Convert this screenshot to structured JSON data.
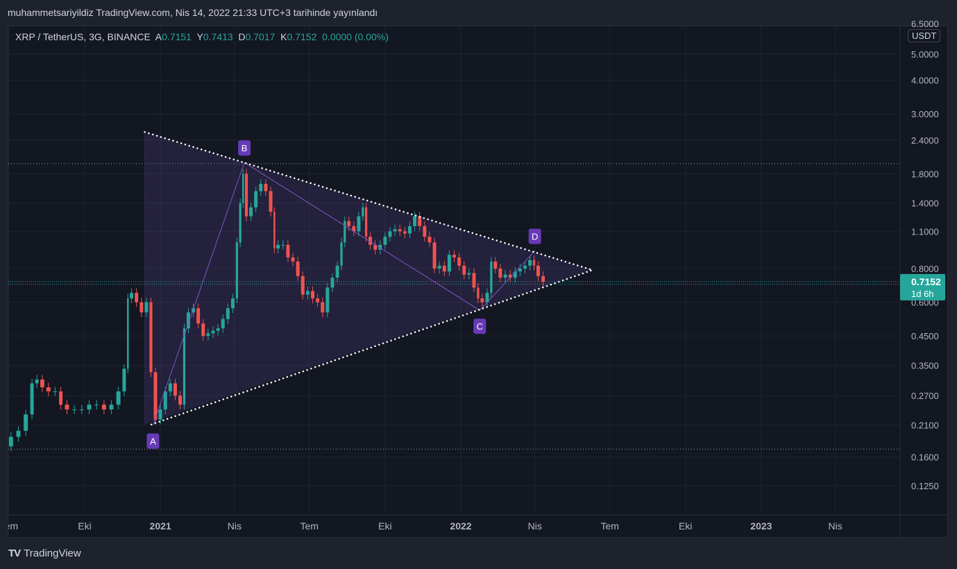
{
  "header": {
    "title": "muhammetsariyildiz TradingView.com, Nis 14, 2022 21:33 UTC+3 tarihinde yayınlandı"
  },
  "legend": {
    "symbol": "XRP / TetherUS, 3G, BINANCE",
    "open_label": "A",
    "open": "0.7151",
    "high_label": "Y",
    "high": "0.7413",
    "low_label": "D",
    "low": "0.7017",
    "close_label": "K",
    "close": "0.7152",
    "change": "0.0000 (0.00%)"
  },
  "price_axis": {
    "unit": "USDT",
    "last_price": "0.7152",
    "countdown": "1d 6h"
  },
  "footer": {
    "brand": "TradingView",
    "brand_mark": "TV"
  },
  "colors": {
    "up": "#26a69a",
    "down": "#ef5350",
    "pattern": "#7e57c2",
    "label_bg": "#673ab7",
    "background": "#131722"
  },
  "chart_data": {
    "type": "candlestick",
    "title": "XRP / TetherUS, 3G, BINANCE",
    "yscale": "log",
    "ylim": [
      0.1,
      6.6
    ],
    "xlim": [
      "2020-06-28",
      "2023-06-01"
    ],
    "y_ticks": [
      "6.5000",
      "5.0000",
      "4.0000",
      "3.0000",
      "2.4000",
      "1.8000",
      "1.4000",
      "1.1000",
      "0.8000",
      "0.6000",
      "0.4500",
      "0.3500",
      "0.2700",
      "0.2100",
      "0.1600",
      "0.1250"
    ],
    "x_ticks": [
      {
        "date": "2020-07-01",
        "label": "Tem",
        "bold": false
      },
      {
        "date": "2020-10-01",
        "label": "Eki",
        "bold": false
      },
      {
        "date": "2021-01-01",
        "label": "2021",
        "bold": true
      },
      {
        "date": "2021-04-01",
        "label": "Nis",
        "bold": false
      },
      {
        "date": "2021-07-01",
        "label": "Tem",
        "bold": false
      },
      {
        "date": "2021-10-01",
        "label": "Eki",
        "bold": false
      },
      {
        "date": "2022-01-01",
        "label": "2022",
        "bold": true
      },
      {
        "date": "2022-04-01",
        "label": "Nis",
        "bold": false
      },
      {
        "date": "2022-07-01",
        "label": "Tem",
        "bold": false
      },
      {
        "date": "2022-10-01",
        "label": "Eki",
        "bold": false
      },
      {
        "date": "2023-01-01",
        "label": "2023",
        "bold": true
      },
      {
        "date": "2023-04-01",
        "label": "Nis",
        "bold": false
      }
    ],
    "series_close": [
      [
        "2020-06-29",
        0.175
      ],
      [
        "2020-07-08",
        0.19
      ],
      [
        "2020-07-17",
        0.2
      ],
      [
        "2020-07-26",
        0.23
      ],
      [
        "2020-08-01",
        0.3
      ],
      [
        "2020-08-07",
        0.31
      ],
      [
        "2020-08-14",
        0.29
      ],
      [
        "2020-08-22",
        0.28
      ],
      [
        "2020-08-30",
        0.28
      ],
      [
        "2020-09-05",
        0.25
      ],
      [
        "2020-09-14",
        0.24
      ],
      [
        "2020-09-23",
        0.24
      ],
      [
        "2020-10-02",
        0.24
      ],
      [
        "2020-10-11",
        0.25
      ],
      [
        "2020-10-20",
        0.25
      ],
      [
        "2020-10-29",
        0.24
      ],
      [
        "2020-11-07",
        0.25
      ],
      [
        "2020-11-15",
        0.28
      ],
      [
        "2020-11-21",
        0.34
      ],
      [
        "2020-11-24",
        0.62
      ],
      [
        "2020-11-30",
        0.65
      ],
      [
        "2020-12-06",
        0.6
      ],
      [
        "2020-12-12",
        0.55
      ],
      [
        "2020-12-18",
        0.6
      ],
      [
        "2020-12-23",
        0.33
      ],
      [
        "2020-12-29",
        0.22
      ],
      [
        "2021-01-04",
        0.24
      ],
      [
        "2021-01-10",
        0.28
      ],
      [
        "2021-01-16",
        0.3
      ],
      [
        "2021-01-22",
        0.27
      ],
      [
        "2021-01-28",
        0.25
      ],
      [
        "2021-02-01",
        0.48
      ],
      [
        "2021-02-07",
        0.55
      ],
      [
        "2021-02-13",
        0.57
      ],
      [
        "2021-02-19",
        0.5
      ],
      [
        "2021-02-25",
        0.45
      ],
      [
        "2021-03-03",
        0.46
      ],
      [
        "2021-03-09",
        0.47
      ],
      [
        "2021-03-15",
        0.48
      ],
      [
        "2021-03-21",
        0.52
      ],
      [
        "2021-03-27",
        0.57
      ],
      [
        "2021-04-02",
        0.62
      ],
      [
        "2021-04-06",
        1.0
      ],
      [
        "2021-04-10",
        1.4
      ],
      [
        "2021-04-13",
        1.8
      ],
      [
        "2021-04-18",
        1.25
      ],
      [
        "2021-04-24",
        1.35
      ],
      [
        "2021-04-30",
        1.55
      ],
      [
        "2021-05-06",
        1.65
      ],
      [
        "2021-05-12",
        1.55
      ],
      [
        "2021-05-18",
        1.3
      ],
      [
        "2021-05-21",
        0.95
      ],
      [
        "2021-05-27",
        0.98
      ],
      [
        "2021-06-02",
        0.98
      ],
      [
        "2021-06-08",
        0.88
      ],
      [
        "2021-06-14",
        0.85
      ],
      [
        "2021-06-20",
        0.75
      ],
      [
        "2021-06-26",
        0.64
      ],
      [
        "2021-07-02",
        0.66
      ],
      [
        "2021-07-08",
        0.62
      ],
      [
        "2021-07-14",
        0.6
      ],
      [
        "2021-07-20",
        0.55
      ],
      [
        "2021-07-26",
        0.68
      ],
      [
        "2021-08-01",
        0.74
      ],
      [
        "2021-08-07",
        0.82
      ],
      [
        "2021-08-11",
        1.0
      ],
      [
        "2021-08-15",
        1.2
      ],
      [
        "2021-08-21",
        1.15
      ],
      [
        "2021-08-27",
        1.1
      ],
      [
        "2021-09-02",
        1.25
      ],
      [
        "2021-09-06",
        1.35
      ],
      [
        "2021-09-10",
        1.05
      ],
      [
        "2021-09-16",
        0.98
      ],
      [
        "2021-09-22",
        0.94
      ],
      [
        "2021-09-28",
        0.98
      ],
      [
        "2021-10-04",
        1.05
      ],
      [
        "2021-10-10",
        1.1
      ],
      [
        "2021-10-16",
        1.12
      ],
      [
        "2021-10-22",
        1.1
      ],
      [
        "2021-10-28",
        1.08
      ],
      [
        "2021-11-03",
        1.15
      ],
      [
        "2021-11-09",
        1.25
      ],
      [
        "2021-11-15",
        1.15
      ],
      [
        "2021-11-21",
        1.05
      ],
      [
        "2021-11-27",
        1.0
      ],
      [
        "2021-12-03",
        0.8
      ],
      [
        "2021-12-09",
        0.82
      ],
      [
        "2021-12-15",
        0.78
      ],
      [
        "2021-12-21",
        0.9
      ],
      [
        "2021-12-27",
        0.88
      ],
      [
        "2022-01-02",
        0.82
      ],
      [
        "2022-01-08",
        0.76
      ],
      [
        "2022-01-14",
        0.77
      ],
      [
        "2022-01-20",
        0.68
      ],
      [
        "2022-01-24",
        0.62
      ],
      [
        "2022-01-30",
        0.6
      ],
      [
        "2022-02-05",
        0.65
      ],
      [
        "2022-02-09",
        0.85
      ],
      [
        "2022-02-15",
        0.8
      ],
      [
        "2022-02-21",
        0.74
      ],
      [
        "2022-02-27",
        0.76
      ],
      [
        "2022-03-05",
        0.74
      ],
      [
        "2022-03-11",
        0.78
      ],
      [
        "2022-03-17",
        0.8
      ],
      [
        "2022-03-23",
        0.82
      ],
      [
        "2022-03-29",
        0.86
      ],
      [
        "2022-04-02",
        0.82
      ],
      [
        "2022-04-08",
        0.75
      ],
      [
        "2022-04-14",
        0.7152
      ]
    ],
    "drawings": {
      "triangle_upper": [
        [
          "2020-12-13",
          2.57
        ],
        [
          "2022-06-10",
          0.79
        ]
      ],
      "triangle_lower": [
        [
          "2020-12-21",
          0.211
        ],
        [
          "2022-06-10",
          0.79
        ]
      ],
      "triangle_left": [
        [
          "2020-12-13",
          2.57
        ],
        [
          "2020-12-13",
          0.211
        ]
      ],
      "pattern_points": [
        {
          "label": "A",
          "date": "2020-12-23",
          "price": 0.21
        },
        {
          "label": "B",
          "date": "2021-04-13",
          "price": 1.98
        },
        {
          "label": "C",
          "date": "2022-01-24",
          "price": 0.56
        },
        {
          "label": "D",
          "date": "2022-04-01",
          "price": 0.93
        }
      ],
      "horizontal_levels": [
        1.96,
        0.171
      ],
      "price_lines": [
        0.7152,
        0.7
      ]
    }
  }
}
